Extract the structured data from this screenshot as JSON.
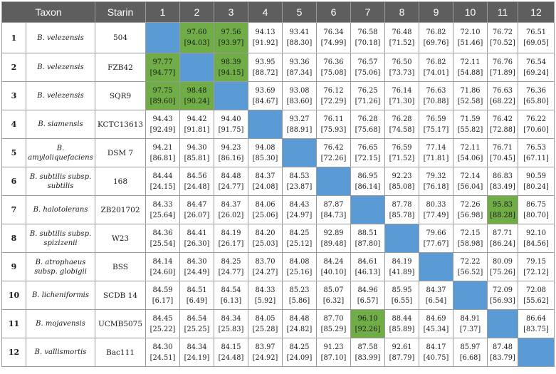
{
  "headers": [
    "Taxon",
    "Starin",
    "1",
    "2",
    "3",
    "4",
    "5",
    "6",
    "7",
    "8",
    "9",
    "10",
    "11",
    "12"
  ],
  "colors": {
    "header_bg": "#5e5e5e",
    "diagonal": "#5b9bd5",
    "highlight": "#70ad47",
    "grid": "#9a9a9a"
  },
  "rows": [
    {
      "idx": "1",
      "taxon": "B. velezensis",
      "strain": "504",
      "cells": [
        [
          "",
          ""
        ],
        [
          "97.60",
          "[94.03]"
        ],
        [
          "97.56",
          "[93.97]"
        ],
        [
          "94.13",
          "[91.92]"
        ],
        [
          "93.41",
          "[88.30]"
        ],
        [
          "76.34",
          "[74.99]"
        ],
        [
          "76.58",
          "[70.18]"
        ],
        [
          "76.48",
          "[71.52]"
        ],
        [
          "76.82",
          "[69.76]"
        ],
        [
          "72.10",
          "[51.46]"
        ],
        [
          "76.72",
          "[70.52]"
        ],
        [
          "76.51",
          "[69.05]"
        ]
      ]
    },
    {
      "idx": "2",
      "taxon": "B. velezensis",
      "strain": "FZB42",
      "cells": [
        [
          "97.77",
          "[94.77]"
        ],
        [
          "",
          ""
        ],
        [
          "98.39",
          "[94.15]"
        ],
        [
          "93.95",
          "[88.72]"
        ],
        [
          "93.36",
          "[87.34]"
        ],
        [
          "76.36",
          "[75.08]"
        ],
        [
          "76.57",
          "[75.06]"
        ],
        [
          "76.50",
          "[73.73]"
        ],
        [
          "76.82",
          "[74.01]"
        ],
        [
          "72.11",
          "[54.88]"
        ],
        [
          "76.76",
          "[71.89]"
        ],
        [
          "76.54",
          "[69.24]"
        ]
      ]
    },
    {
      "idx": "3",
      "taxon": "B. velezensis",
      "strain": "SQR9",
      "cells": [
        [
          "97.75",
          "[89.60]"
        ],
        [
          "98.48",
          "[90.24]"
        ],
        [
          "",
          ""
        ],
        [
          "93.69",
          "[84.67]"
        ],
        [
          "93.08",
          "[83.60]"
        ],
        [
          "76.12",
          "[72.29]"
        ],
        [
          "76.25",
          "[71.26]"
        ],
        [
          "76.14",
          "[71.30]"
        ],
        [
          "76.63",
          "[70.88]"
        ],
        [
          "71.86",
          "[52.58]"
        ],
        [
          "76.63",
          "[68.22]"
        ],
        [
          "76.36",
          "[65.80]"
        ]
      ]
    },
    {
      "idx": "4",
      "taxon": "B. siamensis",
      "strain": "KCTC13613",
      "cells": [
        [
          "94.43",
          "[92.49]"
        ],
        [
          "94.42",
          "[91.81]"
        ],
        [
          "94.40",
          "[91.75]"
        ],
        [
          "",
          ""
        ],
        [
          "93.27",
          "[88.91]"
        ],
        [
          "76.11",
          "[75.93]"
        ],
        [
          "76.28",
          "[75.68]"
        ],
        [
          "76.28",
          "[74.58]"
        ],
        [
          "76.59",
          "[75.17]"
        ],
        [
          "71.59",
          "[55.82]"
        ],
        [
          "76.42",
          "[72.88]"
        ],
        [
          "76.22",
          "[70.60]"
        ]
      ]
    },
    {
      "idx": "5",
      "taxon": "B. amyloliquefaciens",
      "strain": "DSM 7",
      "cells": [
        [
          "94.21",
          "[86.81]"
        ],
        [
          "94.30",
          "[85.81]"
        ],
        [
          "94.23",
          "[86.16]"
        ],
        [
          "94.08",
          "[85.30]"
        ],
        [
          "",
          ""
        ],
        [
          "76.42",
          "[72.26]"
        ],
        [
          "76.65",
          "[72.15]"
        ],
        [
          "76.59",
          "[71.52]"
        ],
        [
          "77.14",
          "[71.81]"
        ],
        [
          "72.11",
          "[54.06]"
        ],
        [
          "76.71",
          "[70.45]"
        ],
        [
          "76.53",
          "[67.11]"
        ]
      ]
    },
    {
      "idx": "6",
      "taxon": "B. subtilis subsp. subtilis",
      "strain": "168",
      "cells": [
        [
          "84.44",
          "[24.15]"
        ],
        [
          "84.56",
          "[24.48]"
        ],
        [
          "84.48",
          "[24.77]"
        ],
        [
          "84.37",
          "[24.08]"
        ],
        [
          "84.53",
          "[23.87]"
        ],
        [
          "",
          ""
        ],
        [
          "86.95",
          "[86.14]"
        ],
        [
          "92.23",
          "[85.08]"
        ],
        [
          "79.32",
          "[76.18]"
        ],
        [
          "72.14",
          "[56.04]"
        ],
        [
          "86.83",
          "[83.49]"
        ],
        [
          "90.59",
          "[80.24]"
        ]
      ]
    },
    {
      "idx": "7",
      "taxon": "B. halotolerans",
      "strain": "ZB201702",
      "cells": [
        [
          "84.33",
          "[25.64]"
        ],
        [
          "84.47",
          "[26.07]"
        ],
        [
          "84.37",
          "[26.02]"
        ],
        [
          "84.06",
          "[25.06]"
        ],
        [
          "84.43",
          "[24.97]"
        ],
        [
          "87.87",
          "[84.73]"
        ],
        [
          "",
          ""
        ],
        [
          "87.78",
          "[85.78]"
        ],
        [
          "80.33",
          "[77.49]"
        ],
        [
          "72.26",
          "[56.98]"
        ],
        [
          "95.83",
          "[88.28]"
        ],
        [
          "86.75",
          "[80.70]"
        ]
      ]
    },
    {
      "idx": "8",
      "taxon": "B. subtilis subsp. spizizenii",
      "strain": "W23",
      "cells": [
        [
          "84.36",
          "[25.54]"
        ],
        [
          "84.41",
          "[26.30]"
        ],
        [
          "84.19",
          "[26.17]"
        ],
        [
          "84.20",
          "[25.03]"
        ],
        [
          "84.25",
          "[25.12]"
        ],
        [
          "92.89",
          "[89.48]"
        ],
        [
          "88.51",
          "[87.80]"
        ],
        [
          "",
          ""
        ],
        [
          "79.66",
          "[77.67]"
        ],
        [
          "72.15",
          "[58.98]"
        ],
        [
          "87.71",
          "[86.24]"
        ],
        [
          "92.10",
          "[84.56]"
        ]
      ]
    },
    {
      "idx": "9",
      "taxon": "B. atrophaeus subsp. globigii",
      "strain": "BSS",
      "cells": [
        [
          "84.14",
          "[24.60]"
        ],
        [
          "84.30",
          "[24.49]"
        ],
        [
          "84.25",
          "[24.77]"
        ],
        [
          "83.70",
          "[24.27]"
        ],
        [
          "84.08",
          "[25.16]"
        ],
        [
          "84.24",
          "[40.10]"
        ],
        [
          "84.61",
          "[46.13]"
        ],
        [
          "84.19",
          "[41.89]"
        ],
        [
          "",
          ""
        ],
        [
          "72.22",
          "[56.52]"
        ],
        [
          "80.09",
          "[75.26]"
        ],
        [
          "79.15",
          "[72.12]"
        ]
      ]
    },
    {
      "idx": "10",
      "taxon": "B. licheniformis",
      "strain": "SCDB 14",
      "cells": [
        [
          "84.59",
          "[6.17]"
        ],
        [
          "84.51",
          "[6.49]"
        ],
        [
          "84.54",
          "[6.13]"
        ],
        [
          "84.33",
          "[5.92]"
        ],
        [
          "85.23",
          "[5.86]"
        ],
        [
          "85.07",
          "[6.32]"
        ],
        [
          "84.96",
          "[6.57]"
        ],
        [
          "85.95",
          "[6.55]"
        ],
        [
          "84.37",
          "[6.54]"
        ],
        [
          "",
          ""
        ],
        [
          "72.09",
          "[56.93]"
        ],
        [
          "72.08",
          "[55.62]"
        ]
      ]
    },
    {
      "idx": "11",
      "taxon": "B. mojavensis",
      "strain": "UCMB5075",
      "cells": [
        [
          "84.45",
          "[25.22]"
        ],
        [
          "84.54",
          "[25.25]"
        ],
        [
          "84.34",
          "[25.83]"
        ],
        [
          "84.05",
          "[25.28]"
        ],
        [
          "84.48",
          "[24.82]"
        ],
        [
          "87.70",
          "[85.29]"
        ],
        [
          "96.10",
          "[92.26]"
        ],
        [
          "88.44",
          "[85.89]"
        ],
        [
          "84.69",
          "[45.34]"
        ],
        [
          "84.91",
          "[7.37]"
        ],
        [
          "",
          ""
        ],
        [
          "86.64",
          "[83.75]"
        ]
      ]
    },
    {
      "idx": "12",
      "taxon": "B. vallismortis",
      "strain": "Bac111",
      "cells": [
        [
          "84.30",
          "[24.51]"
        ],
        [
          "84.34",
          "[24.19]"
        ],
        [
          "84.15",
          "[24.48]"
        ],
        [
          "83.97",
          "[24.92]"
        ],
        [
          "84.25",
          "[24.09]"
        ],
        [
          "91.23",
          "[87.10]"
        ],
        [
          "87.58",
          "[83.99]"
        ],
        [
          "92.61",
          "[87.79]"
        ],
        [
          "84.17",
          "[40.75]"
        ],
        [
          "85.97",
          "[6.68]"
        ],
        [
          "87.48",
          "[83.79]"
        ],
        [
          "",
          ""
        ]
      ]
    }
  ],
  "highlighted_cells": [
    [
      0,
      1
    ],
    [
      0,
      2
    ],
    [
      1,
      0
    ],
    [
      1,
      2
    ],
    [
      2,
      0
    ],
    [
      2,
      1
    ],
    [
      6,
      10
    ],
    [
      10,
      6
    ]
  ]
}
